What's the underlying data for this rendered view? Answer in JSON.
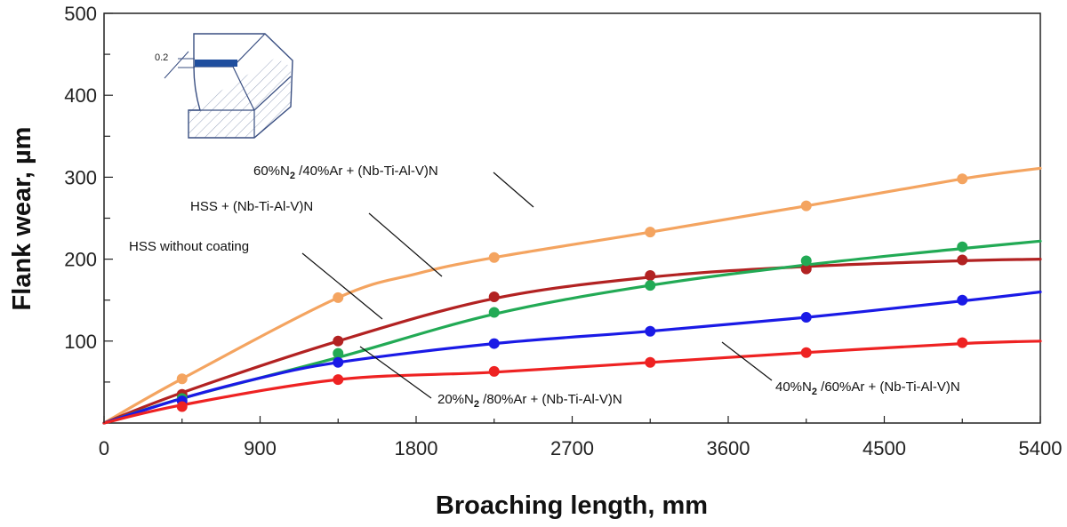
{
  "chart_data": {
    "type": "line",
    "title": "",
    "xlabel": "Broaching length, mm",
    "ylabel": "Flank wear, µm",
    "xlim": [
      0,
      5400
    ],
    "ylim": [
      0,
      500
    ],
    "x_ticks": [
      "0",
      "900",
      "1800",
      "2700",
      "3600",
      "4500",
      "5400"
    ],
    "y_ticks": [
      "100",
      "200",
      "300",
      "400",
      "500"
    ],
    "y_tick_values": [
      100,
      200,
      300,
      400,
      500
    ],
    "grid": false,
    "series": [
      {
        "name": "60%N2 /40%Ar + (Nb-Ti-Al-V)N",
        "label_main": "60%N",
        "label_sub": "2",
        "label_rest": " /40%Ar + (Nb-Ti-Al-V)N",
        "color": "#f4a460",
        "points": [
          [
            450,
            54
          ],
          [
            1350,
            153
          ],
          [
            2250,
            202
          ],
          [
            3150,
            233
          ],
          [
            4050,
            265
          ],
          [
            4950,
            298
          ]
        ],
        "curve": [
          [
            0,
            0
          ],
          [
            450,
            54
          ],
          [
            1350,
            153
          ],
          [
            1800,
            182
          ],
          [
            2250,
            202
          ],
          [
            3150,
            233
          ],
          [
            4050,
            265
          ],
          [
            4950,
            298
          ],
          [
            5400,
            311
          ]
        ]
      },
      {
        "name": "HSS + (Nb-Ti-Al-V)N",
        "label_main": "HSS + (Nb-Ti-Al-V)N",
        "label_sub": "",
        "label_rest": "",
        "color": "#b22222",
        "points": [
          [
            450,
            35
          ],
          [
            1350,
            100
          ],
          [
            2250,
            154
          ],
          [
            3150,
            180
          ],
          [
            4050,
            188
          ],
          [
            4950,
            199
          ]
        ],
        "curve": [
          [
            0,
            0
          ],
          [
            450,
            37
          ],
          [
            1350,
            100
          ],
          [
            2250,
            152
          ],
          [
            3150,
            178
          ],
          [
            4050,
            191
          ],
          [
            4950,
            198
          ],
          [
            5400,
            200
          ]
        ]
      },
      {
        "name": "HSS without coating",
        "label_main": "HSS without coating",
        "label_sub": "",
        "label_rest": "",
        "color": "#22aa55",
        "points": [
          [
            450,
            30
          ],
          [
            1350,
            85
          ],
          [
            2250,
            135
          ],
          [
            3150,
            168
          ],
          [
            4050,
            198
          ],
          [
            4950,
            215
          ]
        ],
        "curve": [
          [
            0,
            0
          ],
          [
            450,
            30
          ],
          [
            1350,
            80
          ],
          [
            2250,
            133
          ],
          [
            3150,
            168
          ],
          [
            4050,
            193
          ],
          [
            4950,
            213
          ],
          [
            5400,
            222
          ]
        ]
      },
      {
        "name": "20%N2 /80%Ar + (Nb-Ti-Al-V)N",
        "label_main": "20%N",
        "label_sub": "2",
        "label_rest": " /80%Ar + (Nb-Ti-Al-V)N",
        "color": "#1a1ae6",
        "points": [
          [
            450,
            27
          ],
          [
            1350,
            74
          ],
          [
            2250,
            97
          ],
          [
            3150,
            112
          ],
          [
            4050,
            129
          ],
          [
            4950,
            150
          ]
        ],
        "curve": [
          [
            0,
            0
          ],
          [
            450,
            30
          ],
          [
            900,
            55
          ],
          [
            1350,
            74
          ],
          [
            2250,
            97
          ],
          [
            3150,
            112
          ],
          [
            4050,
            129
          ],
          [
            4950,
            149
          ],
          [
            5400,
            160
          ]
        ]
      },
      {
        "name": "40%N2 /60%Ar + (Nb-Ti-Al-V)N",
        "label_main": "40%N",
        "label_sub": "2",
        "label_rest": " /60%Ar + (Nb-Ti-Al-V)N",
        "color": "#ee2222",
        "points": [
          [
            450,
            20
          ],
          [
            1350,
            53
          ],
          [
            2250,
            63
          ],
          [
            3150,
            74
          ],
          [
            4050,
            86
          ],
          [
            4950,
            98
          ]
        ],
        "curve": [
          [
            0,
            0
          ],
          [
            450,
            22
          ],
          [
            1350,
            53
          ],
          [
            2250,
            62
          ],
          [
            3150,
            74
          ],
          [
            4050,
            86
          ],
          [
            4950,
            97
          ],
          [
            5400,
            100
          ]
        ]
      }
    ],
    "inset": {
      "dimension_label": "0.2"
    }
  }
}
